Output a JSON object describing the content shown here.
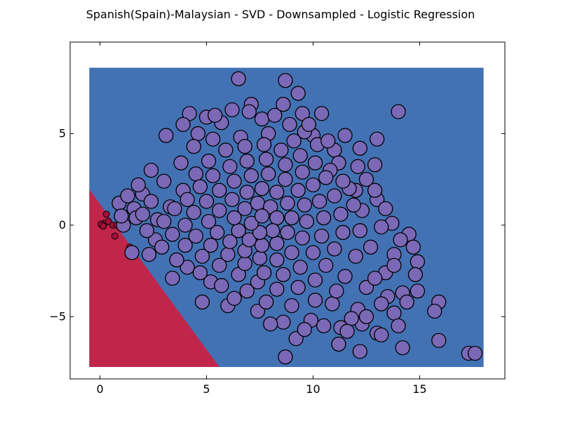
{
  "chart_data": {
    "type": "scatter",
    "title": "Spanish(Spain)-Malaysian - SVD - Downsampled - Logistic Regression",
    "xlabel": "",
    "ylabel": "",
    "xlim": [
      -1.4,
      19.0
    ],
    "ylim": [
      -8.4,
      10.0
    ],
    "xticks": [
      0,
      5,
      10,
      15
    ],
    "yticks": [
      -5,
      0,
      5
    ],
    "xtick_labels": [
      "0",
      "5",
      "10",
      "15"
    ],
    "ytick_labels": [
      "−5",
      "0",
      "5"
    ],
    "grid": false,
    "legend": "none",
    "decision_regions": {
      "x_range": [
        -0.5,
        18.0
      ],
      "y_range": [
        -7.75,
        8.6
      ],
      "colors": {
        "class_a": "#c0264a",
        "class_b": "#4272b4"
      },
      "boundary": [
        [
          -0.5,
          1.95
        ],
        [
          5.6,
          -7.75
        ]
      ]
    },
    "colors": {
      "class_a_marker": "#a50f3a",
      "class_b_marker": "#7b68b6",
      "edge": "#000000"
    },
    "series": [
      {
        "points": [
          [
            0.1,
            0.0
          ],
          [
            0.2,
            0.1
          ],
          [
            0.3,
            0.6
          ],
          [
            0.4,
            0.2
          ],
          [
            0.6,
            0.0
          ],
          [
            0.7,
            -0.6
          ],
          [
            0.8,
            0.0
          ],
          [
            1.4,
            -1.2
          ],
          [
            0.05,
            0.05
          ],
          [
            0.15,
            -0.05
          ]
        ]
      },
      {
        "points": [
          [
            6.5,
            8.0
          ],
          [
            8.7,
            7.9
          ],
          [
            9.3,
            7.2
          ],
          [
            14.0,
            6.2
          ],
          [
            4.2,
            6.1
          ],
          [
            6.2,
            6.3
          ],
          [
            8.6,
            6.6
          ],
          [
            9.5,
            6.1
          ],
          [
            10.4,
            6.1
          ],
          [
            7.1,
            6.6
          ],
          [
            5.0,
            5.9
          ],
          [
            13.0,
            4.7
          ],
          [
            12.2,
            4.2
          ],
          [
            11.5,
            4.9
          ],
          [
            10.0,
            4.9
          ],
          [
            12.9,
            3.3
          ],
          [
            12.5,
            2.5
          ],
          [
            13.0,
            1.4
          ],
          [
            12.0,
            1.9
          ],
          [
            13.7,
            0.1
          ],
          [
            14.5,
            -0.5
          ],
          [
            14.7,
            -1.2
          ],
          [
            14.9,
            -2.0
          ],
          [
            14.8,
            -2.7
          ],
          [
            14.9,
            -3.6
          ],
          [
            14.2,
            -3.7
          ],
          [
            14.4,
            -4.2
          ],
          [
            15.9,
            -4.2
          ],
          [
            13.8,
            -4.8
          ],
          [
            15.7,
            -4.7
          ],
          [
            14.0,
            -5.5
          ],
          [
            13.0,
            -5.9
          ],
          [
            13.2,
            -6.0
          ],
          [
            15.9,
            -6.3
          ],
          [
            14.2,
            -6.7
          ],
          [
            17.3,
            -7.0
          ],
          [
            17.6,
            -7.0
          ],
          [
            12.2,
            -6.9
          ],
          [
            11.2,
            -6.5
          ],
          [
            9.2,
            -6.2
          ],
          [
            8.7,
            -7.2
          ],
          [
            12.3,
            -5.4
          ],
          [
            11.3,
            -5.6
          ],
          [
            10.5,
            -5.5
          ],
          [
            9.9,
            -5.2
          ],
          [
            8.6,
            -5.3
          ],
          [
            4.8,
            -4.2
          ],
          [
            6.0,
            -4.4
          ],
          [
            3.4,
            -2.9
          ],
          [
            1.5,
            -1.5
          ],
          [
            2.3,
            -1.6
          ],
          [
            1.1,
            0.0
          ],
          [
            1.6,
            0.9
          ],
          [
            0.9,
            1.2
          ],
          [
            2.0,
            1.7
          ],
          [
            3.1,
            4.9
          ],
          [
            4.6,
            5.0
          ],
          [
            5.7,
            5.6
          ],
          [
            7.6,
            5.8
          ],
          [
            8.9,
            5.5
          ],
          [
            9.6,
            5.1
          ],
          [
            11.0,
            4.1
          ],
          [
            11.2,
            3.4
          ],
          [
            12.1,
            3.2
          ],
          [
            11.7,
            2.0
          ],
          [
            12.3,
            0.8
          ],
          [
            13.2,
            -0.1
          ],
          [
            12.7,
            -1.2
          ],
          [
            13.8,
            -1.6
          ],
          [
            13.4,
            -2.6
          ],
          [
            12.5,
            -3.4
          ],
          [
            13.5,
            -3.9
          ],
          [
            12.1,
            -4.6
          ],
          [
            11.8,
            -5.1
          ],
          [
            10.9,
            -4.3
          ],
          [
            7.4,
            -4.7
          ],
          [
            6.3,
            -4.0
          ],
          [
            5.2,
            -3.1
          ],
          [
            4.1,
            -2.3
          ],
          [
            2.6,
            -0.8
          ],
          [
            1.7,
            0.4
          ],
          [
            2.4,
            1.3
          ],
          [
            3.0,
            2.4
          ],
          [
            3.8,
            3.4
          ],
          [
            4.4,
            4.3
          ],
          [
            5.3,
            4.7
          ],
          [
            6.6,
            4.8
          ],
          [
            7.9,
            5.0
          ],
          [
            9.1,
            4.6
          ],
          [
            10.2,
            4.4
          ],
          [
            10.8,
            3.0
          ],
          [
            11.4,
            2.4
          ],
          [
            11.9,
            1.1
          ],
          [
            12.2,
            -0.3
          ],
          [
            12.0,
            -1.7
          ],
          [
            11.5,
            -2.8
          ],
          [
            11.1,
            -3.6
          ],
          [
            10.1,
            -4.1
          ],
          [
            9.0,
            -4.4
          ],
          [
            7.8,
            -4.2
          ],
          [
            6.9,
            -3.6
          ],
          [
            5.7,
            -3.3
          ],
          [
            4.7,
            -2.6
          ],
          [
            3.6,
            -1.9
          ],
          [
            2.9,
            -1.2
          ],
          [
            2.2,
            -0.3
          ],
          [
            2.0,
            0.6
          ],
          [
            2.7,
            0.3
          ],
          [
            3.3,
            1.0
          ],
          [
            3.9,
            1.9
          ],
          [
            4.5,
            2.8
          ],
          [
            5.1,
            3.5
          ],
          [
            5.9,
            4.1
          ],
          [
            6.8,
            4.3
          ],
          [
            7.7,
            4.4
          ],
          [
            8.5,
            4.1
          ],
          [
            9.4,
            3.8
          ],
          [
            10.1,
            3.4
          ],
          [
            10.6,
            2.6
          ],
          [
            11.0,
            1.6
          ],
          [
            11.3,
            0.6
          ],
          [
            11.4,
            -0.4
          ],
          [
            11.0,
            -1.3
          ],
          [
            10.6,
            -2.2
          ],
          [
            10.1,
            -3.0
          ],
          [
            9.3,
            -3.4
          ],
          [
            8.3,
            -3.5
          ],
          [
            7.4,
            -3.1
          ],
          [
            6.5,
            -2.7
          ],
          [
            5.6,
            -2.2
          ],
          [
            4.8,
            -1.7
          ],
          [
            4.0,
            -1.1
          ],
          [
            3.4,
            -0.5
          ],
          [
            3.0,
            0.2
          ],
          [
            3.5,
            0.9
          ],
          [
            4.1,
            1.4
          ],
          [
            4.7,
            2.1
          ],
          [
            5.3,
            2.7
          ],
          [
            6.1,
            3.2
          ],
          [
            6.9,
            3.5
          ],
          [
            7.8,
            3.6
          ],
          [
            8.7,
            3.3
          ],
          [
            9.5,
            2.9
          ],
          [
            10.0,
            2.2
          ],
          [
            10.3,
            1.3
          ],
          [
            10.5,
            0.4
          ],
          [
            10.4,
            -0.6
          ],
          [
            10.0,
            -1.5
          ],
          [
            9.4,
            -2.3
          ],
          [
            8.6,
            -2.7
          ],
          [
            7.7,
            -2.6
          ],
          [
            6.8,
            -2.1
          ],
          [
            6.0,
            -1.6
          ],
          [
            5.2,
            -1.1
          ],
          [
            4.5,
            -0.6
          ],
          [
            4.0,
            0.0
          ],
          [
            4.4,
            0.7
          ],
          [
            5.0,
            1.3
          ],
          [
            5.6,
            1.9
          ],
          [
            6.3,
            2.4
          ],
          [
            7.1,
            2.7
          ],
          [
            7.9,
            2.8
          ],
          [
            8.7,
            2.5
          ],
          [
            9.3,
            1.9
          ],
          [
            9.6,
            1.1
          ],
          [
            9.7,
            0.2
          ],
          [
            9.5,
            -0.7
          ],
          [
            9.0,
            -1.5
          ],
          [
            8.3,
            -1.9
          ],
          [
            7.5,
            -1.8
          ],
          [
            6.8,
            -1.4
          ],
          [
            6.1,
            -0.9
          ],
          [
            5.5,
            -0.4
          ],
          [
            5.1,
            0.2
          ],
          [
            5.6,
            0.8
          ],
          [
            6.2,
            1.4
          ],
          [
            6.9,
            1.8
          ],
          [
            7.6,
            2.0
          ],
          [
            8.3,
            1.8
          ],
          [
            8.8,
            1.2
          ],
          [
            9.0,
            0.4
          ],
          [
            8.8,
            -0.4
          ],
          [
            8.3,
            -1.0
          ],
          [
            7.6,
            -1.1
          ],
          [
            7.0,
            -0.8
          ],
          [
            6.5,
            -0.3
          ],
          [
            6.3,
            0.4
          ],
          [
            6.8,
            0.9
          ],
          [
            7.4,
            1.2
          ],
          [
            8.0,
            1.0
          ],
          [
            8.3,
            0.4
          ],
          [
            8.1,
            -0.3
          ],
          [
            7.5,
            -0.4
          ],
          [
            7.1,
            0.1
          ],
          [
            7.6,
            0.5
          ],
          [
            12.9,
            1.9
          ],
          [
            13.4,
            0.9
          ],
          [
            14.1,
            -0.8
          ],
          [
            13.8,
            -2.2
          ],
          [
            12.9,
            -2.9
          ],
          [
            13.2,
            -4.3
          ],
          [
            12.5,
            -5.0
          ],
          [
            11.6,
            -5.8
          ],
          [
            9.6,
            -5.7
          ],
          [
            8.0,
            -5.4
          ],
          [
            3.9,
            5.5
          ],
          [
            5.4,
            6.0
          ],
          [
            7.0,
            6.2
          ],
          [
            8.2,
            6.0
          ],
          [
            9.8,
            5.5
          ],
          [
            10.7,
            4.6
          ],
          [
            2.4,
            3.0
          ],
          [
            1.8,
            2.2
          ],
          [
            1.3,
            1.6
          ],
          [
            1.0,
            0.5
          ]
        ]
      }
    ]
  }
}
